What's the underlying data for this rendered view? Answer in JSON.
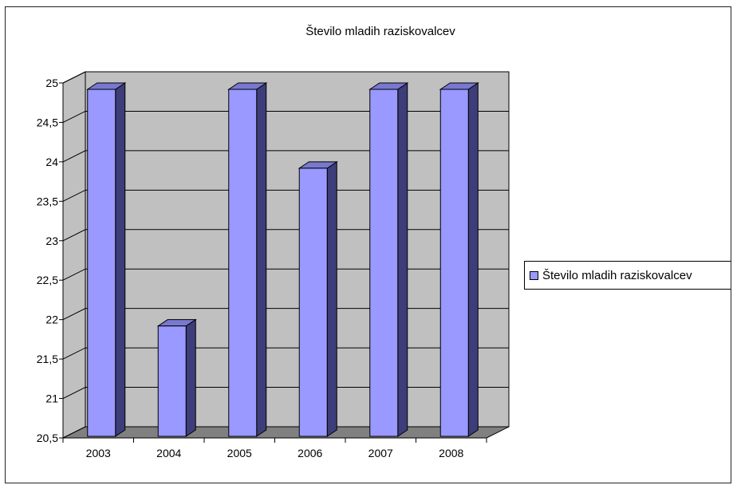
{
  "chart_data": {
    "type": "bar",
    "title": "Število mladih raziskovalcev",
    "categories": [
      "2003",
      "2004",
      "2005",
      "2006",
      "2007",
      "2008"
    ],
    "series": [
      {
        "name": "Število mladih raziskovalcev",
        "values": [
          25,
          22,
          25,
          24,
          25,
          25
        ]
      }
    ],
    "ylim": [
      20.5,
      25
    ],
    "yticks": [
      "20,5",
      "21",
      "21,5",
      "22",
      "22,5",
      "23",
      "23,5",
      "24",
      "24,5",
      "25"
    ],
    "xlabel": "",
    "ylabel": "",
    "grid": true,
    "legend_position": "right",
    "style": "3d-column"
  },
  "colors": {
    "bar_front": "#9999ff",
    "bar_side": "#3d3d7a",
    "bar_top": "#7878d0",
    "wall": "#c0c0c0",
    "floor": "#808080",
    "grid": "#000000"
  }
}
